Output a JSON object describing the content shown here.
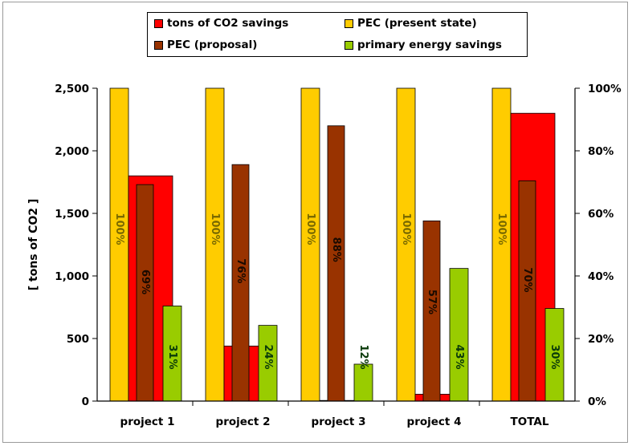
{
  "chart_data": {
    "type": "bar",
    "categories": [
      "project 1",
      "project 2",
      "project 3",
      "project 4",
      "TOTAL"
    ],
    "series": [
      {
        "name": "PEC (present state)",
        "color": "#FFCC00",
        "values": [
          2500,
          2500,
          2500,
          2500,
          2500
        ],
        "pct_labels": [
          "100%",
          "100%",
          "100%",
          "100%",
          "100%"
        ]
      },
      {
        "name": "tons of CO2 savings",
        "color": "#FF0000",
        "values": [
          1800,
          440,
          5,
          55,
          2300
        ]
      },
      {
        "name": "PEC (proposal)",
        "color": "#993300",
        "values": [
          1730,
          1890,
          2200,
          1440,
          1760
        ],
        "pct_labels": [
          "69%",
          "76%",
          "88%",
          "57%",
          "70%"
        ]
      },
      {
        "name": "primary energy savings",
        "color": "#99CC00",
        "values": [
          760,
          605,
          295,
          1060,
          740
        ],
        "pct_labels": [
          "31%",
          "24%",
          "12%",
          "43%",
          "30%"
        ]
      }
    ],
    "ylabel": "[ tons of CO2 ]",
    "ylim": [
      0,
      2500
    ],
    "y_ticks": [
      "0",
      "500",
      "1,000",
      "1,500",
      "2,000",
      "2,500"
    ],
    "y2_ticks": [
      "0%",
      "20%",
      "40%",
      "60%",
      "80%",
      "100%"
    ],
    "y2lim": [
      0,
      100
    ],
    "grid": false,
    "legend_position": "top"
  },
  "legend": {
    "items": [
      {
        "label": "tons of CO2 savings",
        "color": "#FF0000"
      },
      {
        "label": "PEC (present state)",
        "color": "#FFCC00"
      },
      {
        "label": "PEC (proposal)",
        "color": "#993300"
      },
      {
        "label": "primary energy savings",
        "color": "#99CC00"
      }
    ]
  }
}
